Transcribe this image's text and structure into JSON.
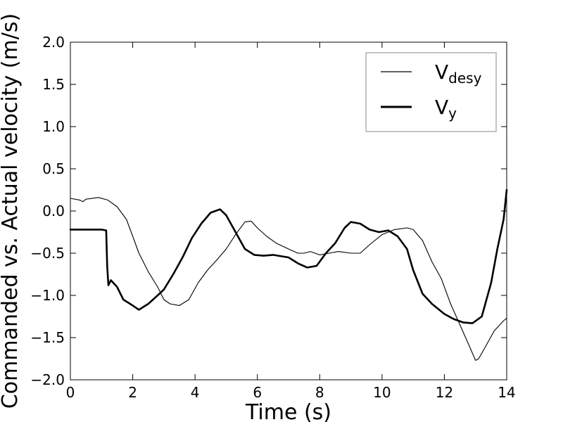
{
  "chart_data": {
    "type": "line",
    "xlabel": "Time (s)",
    "ylabel": "Commanded vs. Actual velocity (m/s)",
    "xlim": [
      0,
      14
    ],
    "ylim": [
      -2.0,
      2.0
    ],
    "xticks": [
      0,
      2,
      4,
      6,
      8,
      10,
      12,
      14
    ],
    "yticks": [
      -2.0,
      -1.5,
      -1.0,
      -0.5,
      0.0,
      0.5,
      1.0,
      1.5,
      2.0
    ],
    "grid": false,
    "legend_position": "top-right",
    "series": [
      {
        "name": "V",
        "name_subscript": "desy",
        "color": "#000000",
        "style": "thin",
        "x": [
          0,
          0.3,
          0.4,
          0.5,
          0.9,
          1.2,
          1.5,
          1.8,
          2.0,
          2.2,
          2.5,
          2.8,
          3.0,
          3.2,
          3.5,
          3.8,
          4.1,
          4.4,
          4.7,
          5.0,
          5.3,
          5.6,
          5.8,
          6.0,
          6.3,
          6.6,
          7.0,
          7.3,
          7.5,
          7.7,
          8.0,
          8.3,
          8.6,
          9.0,
          9.3,
          9.6,
          10.0,
          10.4,
          10.8,
          11.0,
          11.3,
          11.6,
          11.9,
          12.2,
          12.5,
          12.8,
          13.0,
          13.1,
          13.3,
          13.6,
          13.9,
          14.0
        ],
        "y": [
          0.15,
          0.13,
          0.11,
          0.14,
          0.16,
          0.13,
          0.05,
          -0.1,
          -0.3,
          -0.5,
          -0.72,
          -0.9,
          -1.05,
          -1.1,
          -1.12,
          -1.05,
          -0.85,
          -0.7,
          -0.58,
          -0.45,
          -0.28,
          -0.13,
          -0.12,
          -0.2,
          -0.3,
          -0.38,
          -0.45,
          -0.5,
          -0.5,
          -0.48,
          -0.52,
          -0.5,
          -0.48,
          -0.5,
          -0.5,
          -0.4,
          -0.28,
          -0.22,
          -0.2,
          -0.22,
          -0.35,
          -0.6,
          -0.8,
          -1.1,
          -1.35,
          -1.6,
          -1.77,
          -1.75,
          -1.62,
          -1.42,
          -1.3,
          -1.27
        ]
      },
      {
        "name": "V",
        "name_subscript": "y",
        "color": "#000000",
        "style": "thick",
        "x": [
          0,
          0.5,
          1.0,
          1.15,
          1.18,
          1.22,
          1.3,
          1.5,
          1.7,
          2.0,
          2.2,
          2.5,
          2.8,
          3.0,
          3.3,
          3.6,
          3.9,
          4.2,
          4.5,
          4.8,
          5.0,
          5.3,
          5.6,
          5.9,
          6.2,
          6.5,
          7.0,
          7.3,
          7.6,
          7.9,
          8.2,
          8.5,
          8.8,
          9.0,
          9.3,
          9.6,
          9.9,
          10.2,
          10.5,
          10.8,
          11.0,
          11.3,
          11.6,
          12.0,
          12.3,
          12.6,
          12.9,
          13.2,
          13.5,
          13.7,
          13.9,
          14.0
        ],
        "y": [
          -0.22,
          -0.22,
          -0.22,
          -0.23,
          -0.65,
          -0.88,
          -0.82,
          -0.9,
          -1.05,
          -1.12,
          -1.17,
          -1.1,
          -1.0,
          -0.93,
          -0.75,
          -0.55,
          -0.32,
          -0.15,
          -0.02,
          0.02,
          -0.05,
          -0.25,
          -0.45,
          -0.52,
          -0.53,
          -0.52,
          -0.55,
          -0.62,
          -0.67,
          -0.65,
          -0.5,
          -0.38,
          -0.2,
          -0.13,
          -0.15,
          -0.22,
          -0.25,
          -0.23,
          -0.3,
          -0.45,
          -0.7,
          -0.98,
          -1.1,
          -1.22,
          -1.28,
          -1.32,
          -1.33,
          -1.25,
          -0.85,
          -0.45,
          -0.1,
          0.25
        ]
      }
    ]
  }
}
